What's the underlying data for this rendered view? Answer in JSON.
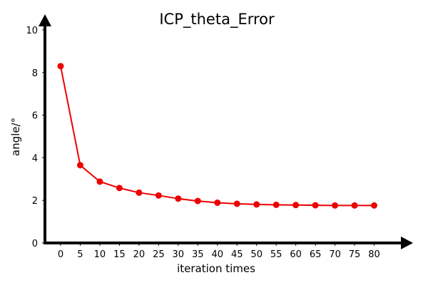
{
  "chart_data": {
    "type": "line",
    "title": "ICP_theta_Error",
    "xlabel": "iteration times",
    "ylabel": "angle/°",
    "xlim": [
      -4,
      87
    ],
    "ylim": [
      0,
      10
    ],
    "x_ticks": [
      0,
      5,
      10,
      15,
      20,
      25,
      30,
      35,
      40,
      45,
      50,
      55,
      60,
      65,
      70,
      75,
      80
    ],
    "y_ticks": [
      0,
      2,
      4,
      6,
      8,
      10
    ],
    "grid": false,
    "legend": "none",
    "series": [
      {
        "color": "#ee0000",
        "marker": "circle",
        "x": [
          0,
          5,
          10,
          15,
          20,
          25,
          30,
          35,
          40,
          45,
          50,
          55,
          60,
          65,
          70,
          75,
          80
        ],
        "y": [
          8.3,
          3.65,
          2.88,
          2.58,
          2.36,
          2.23,
          2.08,
          1.97,
          1.89,
          1.84,
          1.81,
          1.79,
          1.78,
          1.77,
          1.76,
          1.76,
          1.76
        ]
      }
    ]
  }
}
